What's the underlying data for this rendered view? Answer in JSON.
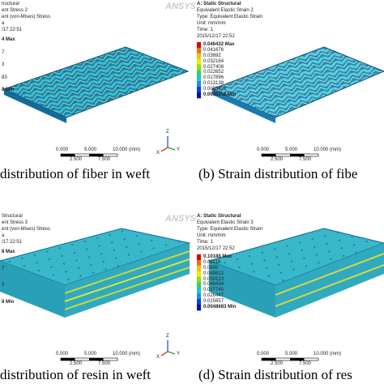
{
  "panels": [
    {
      "logo": "ANSYS",
      "header": [
        "tructural",
        "ent Stress 2",
        "ent (von-Mises) Stress",
        "a",
        "/17 22:51"
      ],
      "legend": [
        "4 Max",
        "7",
        "3",
        "83",
        "8 Min"
      ],
      "scale": {
        "top": [
          "0.000",
          "5.000",
          "10.000 (mm)"
        ],
        "bottom": [
          "2.500",
          "7.500"
        ]
      },
      "triad": [
        "Z",
        "X",
        "Y"
      ],
      "caption": "distribution of fiber in weft"
    },
    {
      "header": [
        "A: Static Structural",
        "Equivalent Elastic Strain 2",
        "Type: Equivalent Elastic Strain",
        "Unit: mm/mm",
        "Time: 1",
        "2015/12/17 22:52"
      ],
      "legend": [
        "0.046432 Max",
        "0.041676",
        "0.03692",
        "0.032164",
        "0.027408",
        "0.022652",
        "0.017896",
        "0.013138",
        "0.0083821",
        "0.0036258 Min"
      ],
      "scale": {
        "top": [
          "0.000",
          "5.000",
          "10.000 (mm)"
        ],
        "bottom": [
          "2.500",
          "7.500"
        ]
      },
      "caption": "(b) Strain distribution of fibe"
    },
    {
      "logo": "ANSYS",
      "header": [
        "Structural",
        "ent Stress 3",
        "ent (von-Mises) Stress",
        "a",
        "/17 22:51"
      ],
      "legend": [
        "8 Max",
        "7",
        "3",
        "8 Min"
      ],
      "scale": {
        "top": [
          "0.000",
          "5.000",
          "10.000 (mm)"
        ],
        "bottom": [
          "2.500",
          "7.500"
        ]
      },
      "triad": [
        "Z",
        "X",
        "Y"
      ],
      "caption": "distribution of resin in weft"
    },
    {
      "header": [
        "A: Static Structural",
        "Equivalent Elastic Strain 3",
        "Type: Equivalent Elastic Strain",
        "Unit: mm/mm",
        "Time: 1",
        "2015/12/17 22:52"
      ],
      "legend": [
        "0.10188 Max",
        "0.09119",
        "0.0805",
        "0.069812",
        "0.059123",
        "0.048434",
        "0.037745",
        "0.026447",
        "0.015657",
        "0.0048683 Min"
      ],
      "scale": {
        "top": [
          "0.000",
          "5.000",
          "10.000 (mm)"
        ],
        "bottom": [
          "2.500",
          "7.500"
        ]
      },
      "caption": "(d) Strain distribution of res"
    }
  ]
}
